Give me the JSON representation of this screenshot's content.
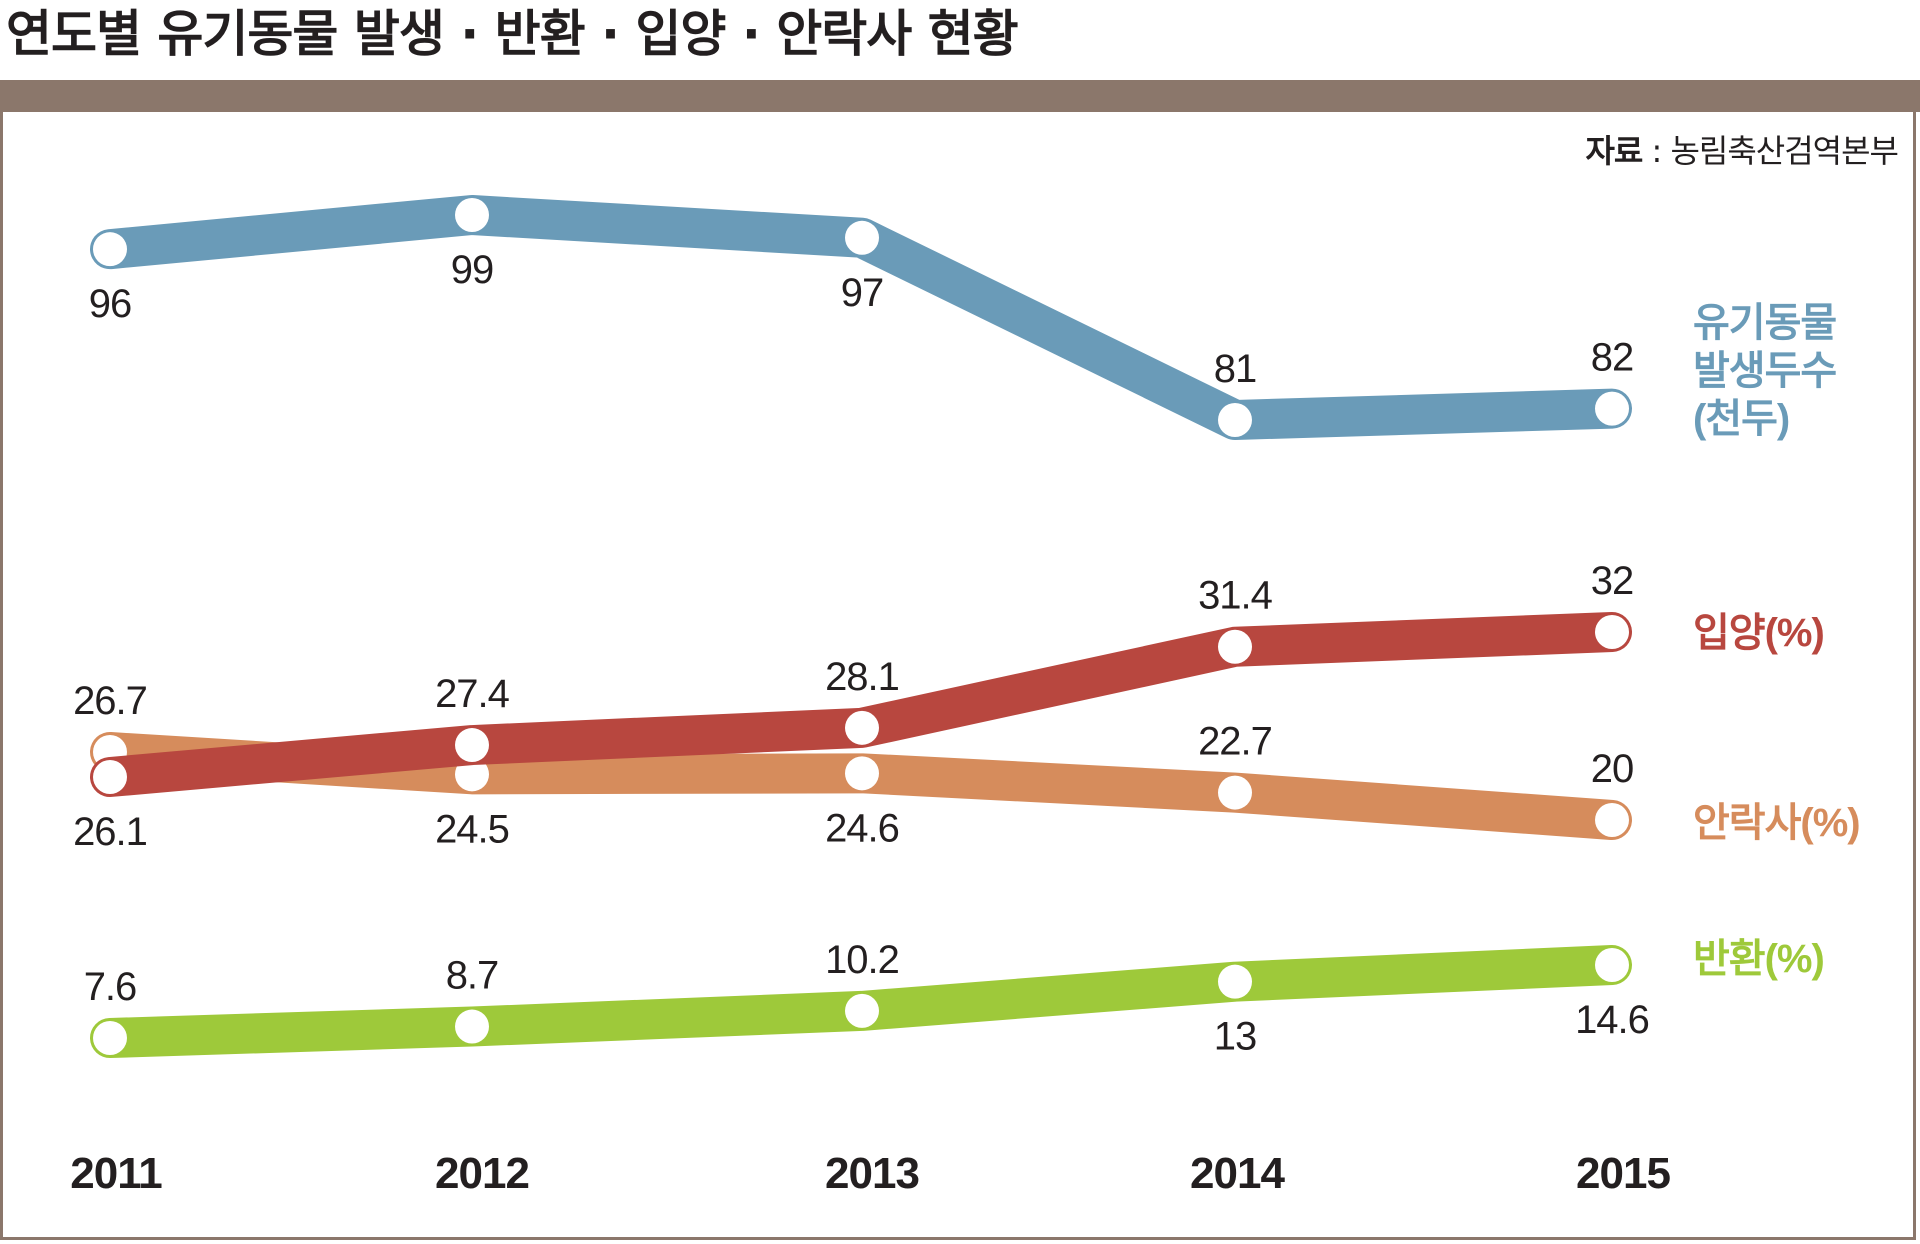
{
  "title": "연도별 유기동물 발생 · 반환 · 입양 · 안락사 현황",
  "source": {
    "label": "자료",
    "separator": " : ",
    "text": "농림축산검역본부"
  },
  "chart_data": {
    "type": "line",
    "title": "연도별 유기동물 발생 · 반환 · 입양 · 안락사 현황",
    "categories": [
      "2011",
      "2012",
      "2013",
      "2014",
      "2015"
    ],
    "grid": false,
    "legend": "right",
    "series": [
      {
        "name": [
          "유기동물",
          "발생두수",
          "(천두)"
        ],
        "color": "#6a9bb8",
        "values": [
          96,
          99,
          97,
          81,
          82
        ],
        "labels": [
          "96",
          "99",
          "97",
          "81",
          "82"
        ]
      },
      {
        "name": [
          "입양(%)"
        ],
        "color": "#b8473f",
        "values": [
          26.1,
          27.4,
          28.1,
          31.4,
          32
        ],
        "labels": [
          "26.1",
          "27.4",
          "28.1",
          "31.4",
          "32"
        ]
      },
      {
        "name": [
          "안락사(%)"
        ],
        "color": "#d68c5c",
        "values": [
          26.7,
          24.5,
          24.6,
          22.7,
          20
        ],
        "labels": [
          "26.7",
          "24.5",
          "24.6",
          "22.7",
          "20"
        ]
      },
      {
        "name": [
          "반환(%)"
        ],
        "color": "#9ec93a",
        "values": [
          7.6,
          8.7,
          10.2,
          13,
          14.6
        ],
        "labels": [
          "7.6",
          "8.7",
          "10.2",
          "13",
          "14.6"
        ]
      }
    ]
  }
}
